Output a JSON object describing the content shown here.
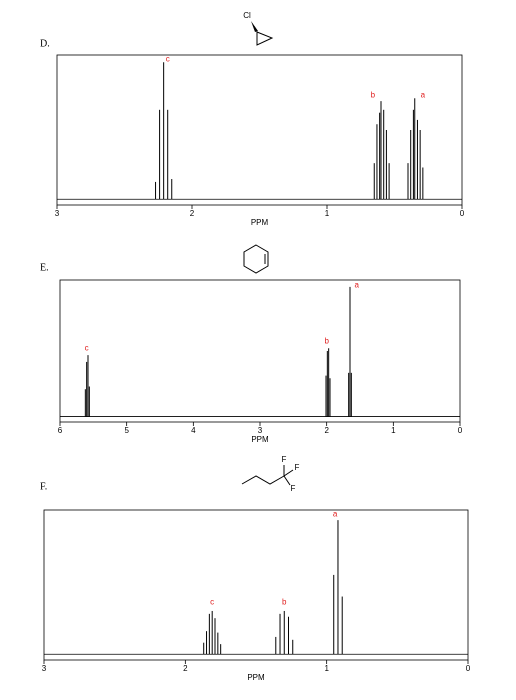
{
  "chart_data": [
    {
      "type": "spectrum",
      "panel_label": "D.",
      "atom_labels": [
        "Cl"
      ],
      "x_label": "PPM",
      "xlim": [
        3,
        0
      ],
      "xticks": [
        3,
        2,
        1,
        0
      ],
      "ylim": [
        -4,
        100
      ],
      "color": "#000000",
      "x": [
        2.27,
        2.24,
        2.21,
        2.18,
        2.15,
        0.65,
        0.63,
        0.61,
        0.6,
        0.58,
        0.56,
        0.54,
        0.4,
        0.38,
        0.36,
        0.35,
        0.33,
        0.31,
        0.29
      ],
      "values": [
        12,
        62,
        95,
        62,
        14,
        25,
        52,
        60,
        68,
        62,
        48,
        25,
        25,
        48,
        62,
        70,
        55,
        48,
        22
      ],
      "annotation_color": "#e02020",
      "annotations": [
        {
          "text": "c",
          "x": 2.18,
          "y": 97
        },
        {
          "text": "b",
          "x": 0.66,
          "y": 72
        },
        {
          "text": "a",
          "x": 0.29,
          "y": 72
        }
      ]
    },
    {
      "type": "spectrum",
      "panel_label": "E.",
      "atom_labels": [],
      "x_label": "PPM",
      "xlim": [
        6,
        0
      ],
      "xticks": [
        6,
        5,
        4,
        3,
        2,
        1,
        0
      ],
      "ylim": [
        -4,
        100
      ],
      "color": "#000000",
      "x": [
        5.62,
        5.6,
        5.58,
        5.56,
        2.01,
        1.99,
        1.97,
        1.95,
        1.67,
        1.65,
        1.63
      ],
      "values": [
        20,
        40,
        45,
        22,
        30,
        48,
        50,
        28,
        32,
        95,
        32
      ],
      "annotation_color": "#e02020",
      "annotations": [
        {
          "text": "c",
          "x": 5.6,
          "y": 50
        },
        {
          "text": "b",
          "x": 2.0,
          "y": 55
        },
        {
          "text": "a",
          "x": 1.55,
          "y": 96
        }
      ]
    },
    {
      "type": "spectrum",
      "panel_label": "F.",
      "atom_labels": [
        "F",
        "F",
        "F"
      ],
      "x_label": "PPM",
      "xlim": [
        3,
        0
      ],
      "xticks": [
        3,
        2,
        1,
        0
      ],
      "ylim": [
        -4,
        100
      ],
      "color": "#000000",
      "x": [
        1.87,
        1.85,
        1.83,
        1.81,
        1.79,
        1.77,
        1.75,
        1.36,
        1.33,
        1.3,
        1.27,
        1.24,
        0.95,
        0.92,
        0.89
      ],
      "values": [
        8,
        16,
        28,
        30,
        25,
        15,
        7,
        12,
        28,
        30,
        26,
        10,
        55,
        93,
        40
      ],
      "annotation_color": "#e02020",
      "annotations": [
        {
          "text": "c",
          "x": 1.81,
          "y": 36
        },
        {
          "text": "b",
          "x": 1.3,
          "y": 36
        },
        {
          "text": "a",
          "x": 0.94,
          "y": 97
        }
      ]
    }
  ]
}
